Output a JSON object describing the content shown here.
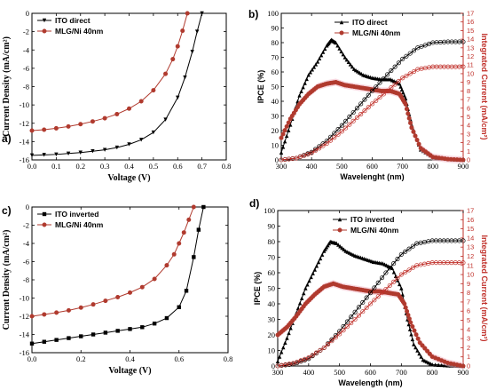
{
  "chart_data": [
    {
      "id": "a",
      "panel_label": "a)",
      "type": "line",
      "xlabel": "Voltage (V)",
      "ylabel": "Current Density (mA/cm²)",
      "xlim": [
        0.0,
        0.8
      ],
      "ylim": [
        -16,
        0
      ],
      "xticks": [
        "0.0",
        "0.1",
        "0.2",
        "0.3",
        "0.4",
        "0.5",
        "0.6",
        "0.7",
        "0.8"
      ],
      "yticks": [
        "0",
        "-2",
        "-4",
        "-6",
        "-8",
        "-10",
        "-12",
        "-14",
        "-16"
      ],
      "legend_position": "top-left",
      "series": [
        {
          "name": "ITO direct",
          "color": "#000000",
          "marker": "triangle-down",
          "x": [
            0,
            0.05,
            0.1,
            0.15,
            0.2,
            0.25,
            0.3,
            0.35,
            0.4,
            0.45,
            0.5,
            0.55,
            0.6,
            0.63,
            0.66,
            0.68,
            0.7
          ],
          "y": [
            -15.5,
            -15.45,
            -15.4,
            -15.3,
            -15.2,
            -15.05,
            -14.9,
            -14.65,
            -14.3,
            -13.8,
            -13.0,
            -11.6,
            -9.2,
            -7.0,
            -4.2,
            -2.0,
            0
          ]
        },
        {
          "name": "MLG/Ni 40nm",
          "color": "#b03a2e",
          "marker": "circle",
          "x": [
            0,
            0.05,
            0.1,
            0.15,
            0.2,
            0.25,
            0.3,
            0.35,
            0.4,
            0.45,
            0.5,
            0.55,
            0.58,
            0.6,
            0.62,
            0.64
          ],
          "y": [
            -12.8,
            -12.7,
            -12.55,
            -12.35,
            -12.1,
            -11.8,
            -11.45,
            -11.0,
            -10.4,
            -9.6,
            -8.4,
            -6.6,
            -5.0,
            -3.6,
            -1.9,
            0
          ]
        }
      ]
    },
    {
      "id": "b",
      "panel_label": "b)",
      "type": "line",
      "xlabel": "Wavelenght (nm)",
      "ylabel": "IPCE (%)",
      "y2label": "Integrated Current (mA/cm²)",
      "xlim": [
        300,
        900
      ],
      "ylim": [
        0,
        100
      ],
      "y2lim": [
        0,
        17
      ],
      "xticks": [
        "300",
        "400",
        "500",
        "600",
        "700",
        "800",
        "900"
      ],
      "yticks": [
        "0",
        "10",
        "20",
        "30",
        "40",
        "50",
        "60",
        "70",
        "80",
        "90",
        "100"
      ],
      "y2ticks": [
        "0",
        "1",
        "2",
        "3",
        "4",
        "5",
        "6",
        "7",
        "8",
        "9",
        "10",
        "11",
        "12",
        "13",
        "14",
        "15",
        "16",
        "17"
      ],
      "legend_position": "top-center",
      "series": [
        {
          "name": "ITO direct",
          "color": "#000000",
          "marker": "triangle-up",
          "axis": "left",
          "x": [
            300,
            330,
            360,
            390,
            420,
            450,
            465,
            480,
            510,
            540,
            570,
            600,
            630,
            660,
            690,
            710,
            730,
            760,
            800,
            850,
            900
          ],
          "y": [
            5,
            24,
            44,
            58,
            67,
            78,
            82,
            80,
            70,
            62,
            58,
            56,
            55,
            55,
            52,
            42,
            24,
            7,
            2,
            0.5,
            0
          ]
        },
        {
          "name": "MLG/Ni 40nm",
          "color": "#b03a2e",
          "marker": "circle",
          "axis": "left",
          "x": [
            300,
            330,
            360,
            390,
            420,
            450,
            480,
            510,
            540,
            570,
            600,
            630,
            660,
            690,
            710,
            730,
            760,
            800,
            850,
            900
          ],
          "y": [
            15,
            28,
            38,
            45,
            50,
            52,
            53,
            51,
            50,
            49,
            48,
            47,
            47,
            45,
            38,
            22,
            8,
            2,
            0.5,
            0
          ]
        },
        {
          "name": "",
          "color": "#000000",
          "marker": "open-circle",
          "axis": "right",
          "x": [
            300,
            350,
            400,
            450,
            500,
            550,
            600,
            650,
            700,
            750,
            800,
            850,
            900
          ],
          "y": [
            0,
            0.2,
            0.9,
            2.2,
            4.0,
            6.0,
            8.0,
            9.9,
            11.7,
            13.0,
            13.6,
            13.7,
            13.7
          ]
        },
        {
          "name": "",
          "color": "#c0302a",
          "marker": "open-circle",
          "axis": "right",
          "x": [
            300,
            350,
            400,
            450,
            500,
            550,
            600,
            650,
            700,
            750,
            800,
            850,
            900
          ],
          "y": [
            0,
            0.2,
            0.8,
            1.9,
            3.3,
            4.9,
            6.5,
            8.0,
            9.5,
            10.5,
            10.8,
            10.8,
            10.8
          ]
        }
      ]
    },
    {
      "id": "c",
      "panel_label": "c)",
      "type": "line",
      "xlabel": "Voltage (V)",
      "ylabel": "Current Density (mA/cm²)",
      "xlim": [
        0.0,
        0.8
      ],
      "ylim": [
        -16,
        0
      ],
      "xticks": [
        "0.0",
        "0.2",
        "0.4",
        "0.6",
        "0.8"
      ],
      "yticks": [
        "0",
        "-2",
        "-4",
        "-6",
        "-8",
        "-10",
        "-12",
        "-14",
        "-16"
      ],
      "legend_position": "top-left",
      "series": [
        {
          "name": "ITO inverted",
          "color": "#000000",
          "marker": "square",
          "x": [
            0,
            0.05,
            0.1,
            0.15,
            0.2,
            0.25,
            0.3,
            0.35,
            0.4,
            0.45,
            0.5,
            0.55,
            0.6,
            0.63,
            0.66,
            0.68,
            0.7
          ],
          "y": [
            -15.0,
            -14.8,
            -14.6,
            -14.4,
            -14.2,
            -14.0,
            -13.8,
            -13.6,
            -13.4,
            -13.2,
            -12.8,
            -12.2,
            -11.0,
            -9.2,
            -5.5,
            -2.5,
            0
          ]
        },
        {
          "name": "MLG/Ni 40nm",
          "color": "#b03a2e",
          "marker": "circle",
          "x": [
            0,
            0.05,
            0.1,
            0.15,
            0.2,
            0.25,
            0.3,
            0.35,
            0.4,
            0.45,
            0.5,
            0.55,
            0.58,
            0.6,
            0.62,
            0.64,
            0.66
          ],
          "y": [
            -12.0,
            -11.8,
            -11.6,
            -11.35,
            -11.05,
            -10.7,
            -10.3,
            -9.9,
            -9.4,
            -8.8,
            -7.9,
            -6.4,
            -5.2,
            -4.0,
            -2.8,
            -1.4,
            0
          ]
        }
      ]
    },
    {
      "id": "d",
      "panel_label": "d)",
      "type": "line",
      "xlabel": "Wavelength (nm)",
      "ylabel": "IPCE (%)",
      "y2label": "Integrated Current (mA/cm²)",
      "xlim": [
        300,
        900
      ],
      "ylim": [
        0,
        100
      ],
      "y2lim": [
        0,
        17
      ],
      "xticks": [
        "300",
        "400",
        "500",
        "600",
        "700",
        "800",
        "900"
      ],
      "yticks": [
        "0",
        "10",
        "20",
        "30",
        "40",
        "50",
        "60",
        "70",
        "80",
        "90",
        "100"
      ],
      "y2ticks": [
        "0",
        "1",
        "2",
        "3",
        "4",
        "5",
        "6",
        "7",
        "8",
        "9",
        "10",
        "11",
        "12",
        "13",
        "14",
        "15",
        "16",
        "17"
      ],
      "legend_position": "top-center",
      "series": [
        {
          "name": "ITO inverted",
          "color": "#000000",
          "marker": "triangle-up",
          "axis": "left",
          "x": [
            300,
            330,
            360,
            390,
            420,
            450,
            470,
            490,
            520,
            550,
            580,
            610,
            640,
            670,
            700,
            720,
            740,
            770,
            800,
            850,
            900
          ],
          "y": [
            3,
            18,
            34,
            50,
            62,
            74,
            80,
            79,
            74,
            71,
            69,
            67,
            66,
            63,
            50,
            30,
            14,
            4,
            1,
            0.3,
            0
          ]
        },
        {
          "name": "MLG/Ni 40nm",
          "color": "#b03a2e",
          "marker": "circle",
          "axis": "left",
          "x": [
            300,
            330,
            360,
            390,
            420,
            450,
            480,
            510,
            540,
            570,
            600,
            630,
            660,
            690,
            710,
            730,
            760,
            800,
            850,
            900
          ],
          "y": [
            20,
            25,
            32,
            40,
            46,
            51,
            53,
            51,
            50,
            49,
            48,
            48,
            47,
            46,
            40,
            28,
            15,
            6,
            2,
            0
          ]
        },
        {
          "name": "",
          "color": "#000000",
          "marker": "open-circle",
          "axis": "right",
          "x": [
            300,
            350,
            400,
            450,
            500,
            550,
            600,
            650,
            700,
            750,
            800,
            850,
            900
          ],
          "y": [
            0,
            0.2,
            0.8,
            2.0,
            3.8,
            5.9,
            8.0,
            10.2,
            12.2,
            13.4,
            13.7,
            13.7,
            13.7
          ]
        },
        {
          "name": "",
          "color": "#c0302a",
          "marker": "open-circle",
          "axis": "right",
          "x": [
            300,
            350,
            400,
            450,
            500,
            550,
            600,
            650,
            700,
            750,
            800,
            850,
            900
          ],
          "y": [
            0,
            0.3,
            0.9,
            2.0,
            3.5,
            5.1,
            6.8,
            8.4,
            10.0,
            11.0,
            11.3,
            11.3,
            11.3
          ]
        }
      ]
    }
  ]
}
